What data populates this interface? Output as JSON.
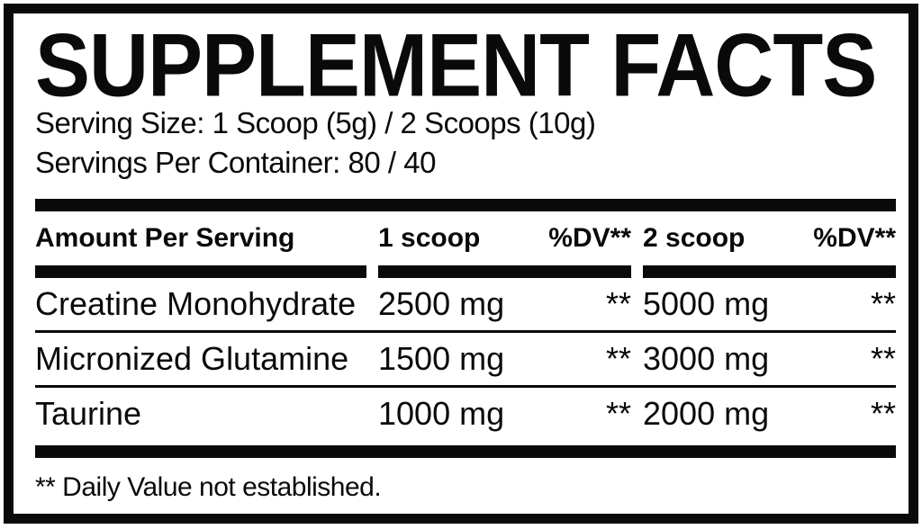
{
  "label": {
    "title": "SUPPLEMENT FACTS",
    "serving_size": "Serving Size: 1 Scoop (5g) / 2 Scoops (10g)",
    "servings_per_container": "Servings Per Container: 80 / 40",
    "footnote": "** Daily Value not established."
  },
  "table": {
    "headers": {
      "amount": "Amount Per Serving",
      "scoop1": "1 scoop",
      "dv1": "%DV**",
      "scoop2": "2 scoop",
      "dv2": "%DV**"
    },
    "rows": [
      {
        "name": "Creatine Monohydrate",
        "scoop1_amount": "2500 mg",
        "dv1": "**",
        "scoop2_amount": "5000 mg",
        "dv2": "**"
      },
      {
        "name": "Micronized Glutamine",
        "scoop1_amount": "1500 mg",
        "dv1": "**",
        "scoop2_amount": "3000 mg",
        "dv2": "**"
      },
      {
        "name": "Taurine",
        "scoop1_amount": "1000 mg",
        "dv1": "**",
        "scoop2_amount": "2000 mg",
        "dv2": "**"
      }
    ]
  },
  "colors": {
    "text": "#0a0a0a",
    "background": "#ffffff",
    "border": "#0a0a0a"
  }
}
